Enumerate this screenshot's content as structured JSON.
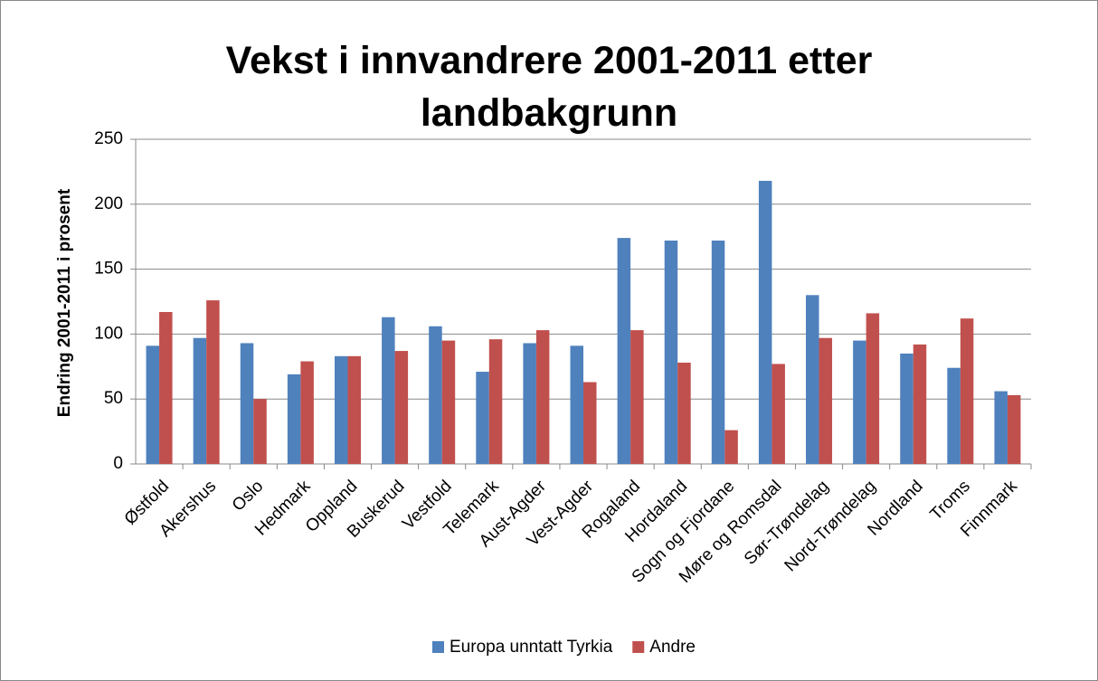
{
  "chart_data": {
    "type": "bar",
    "title": "Vekst i innvandrere 2001-2011 etter landbakgrunn",
    "y_label": "Endring 2001-2011 i prosent",
    "categories": [
      "Østfold",
      "Akershus",
      "Oslo",
      "Hedmark",
      "Oppland",
      "Buskerud",
      "Vestfold",
      "Telemark",
      "Aust-Agder",
      "Vest-Agder",
      "Rogaland",
      "Hordaland",
      "Sogn og Fjordane",
      "Møre og Romsdal",
      "Sør-Trøndelag",
      "Nord-Trøndelag",
      "Nordland",
      "Troms",
      "Finnmark"
    ],
    "series": [
      {
        "name": "Europa unntatt Tyrkia",
        "color": "#4f81bd",
        "values": [
          91,
          97,
          93,
          69,
          83,
          113,
          106,
          71,
          93,
          91,
          174,
          172,
          172,
          218,
          130,
          95,
          85,
          74,
          56
        ]
      },
      {
        "name": "Andre",
        "color": "#c0504d",
        "values": [
          117,
          126,
          50,
          79,
          83,
          87,
          95,
          96,
          103,
          63,
          103,
          78,
          26,
          77,
          97,
          116,
          92,
          112,
          53
        ]
      }
    ],
    "ylim": [
      0,
      250
    ],
    "yticks": [
      0,
      50,
      100,
      150,
      200,
      250
    ],
    "grid": true,
    "legend": "bottom"
  }
}
